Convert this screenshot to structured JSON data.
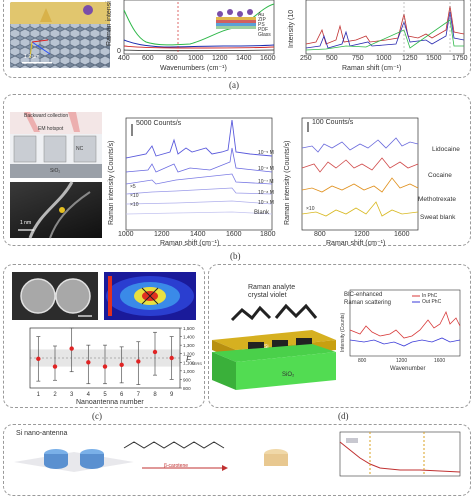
{
  "panels": {
    "a": {
      "label": "(a)",
      "scalebar": "1.2 μm",
      "spectrum_layers": [
        "Au",
        "ZIP",
        "PS",
        "PDF",
        "Glass"
      ],
      "spectrum": {
        "ylabel": "Raman intensi",
        "xlabel": "Wavenumbers (cm⁻¹)",
        "xticks": [
          "400",
          "600",
          "800",
          "1000",
          "1200",
          "1400",
          "1600"
        ],
        "ytick": "0"
      },
      "right": {
        "ylabel": "Intensity (10",
        "xlabel": "Raman shift (cm⁻¹)",
        "xticks": [
          "250",
          "500",
          "750",
          "1000",
          "1250",
          "1500",
          "1750"
        ]
      }
    },
    "b": {
      "label": "(b)",
      "illus": {
        "backward": "Backward collection",
        "hotspot": "EM hotspot",
        "nc": "NC",
        "sio2": "SiO₂",
        "scale": "1 nm"
      },
      "left": {
        "scale": "5000 Counts/s",
        "ylabel": "Raman intensity (Counts/s)",
        "xlabel": "Raman shift (cm⁻¹)",
        "xticks": [
          "1000",
          "1200",
          "1400",
          "1600",
          "1800"
        ],
        "conc": [
          "10⁻⁵ M",
          "10⁻⁶ M",
          "10⁻⁷ M",
          "10⁻⁸ M",
          "10⁻⁹ M",
          "Blank"
        ],
        "mult": [
          "×5",
          "×10",
          "×10"
        ]
      },
      "right": {
        "scale": "100 Counts/s",
        "ylabel": "Raman intensity (Counts/s)",
        "xlabel": "Raman shift (cm⁻¹)",
        "xticks": [
          "800",
          "1200",
          "1600"
        ],
        "labels": [
          "Lidocaine",
          "Cocaine",
          "Methotrexate",
          "Sweat blank"
        ],
        "mult": "×10"
      }
    },
    "c": {
      "label": "(c)",
      "xlabel": "Nanoantenna number",
      "ylabel": "F",
      "ylabel_sub": "SERS",
      "yticks": [
        "800",
        "900",
        "1,000",
        "1,100",
        "1,200",
        "1,300",
        "1,400",
        "1,500"
      ],
      "xticks": [
        "1",
        "2",
        "3",
        "4",
        "5",
        "6",
        "7",
        "8",
        "9"
      ]
    },
    "d": {
      "label": "(d)",
      "title1": "Raman analyte",
      "title2": "crystal violet",
      "sio2": "SiO₂",
      "nsi": "Si",
      "inset_title1": "BIC-enhanced",
      "inset_title2": "Raman scattering",
      "legend": [
        "In PhC",
        "Out PhC"
      ],
      "ylabel": "Intensity (Counts)",
      "xlabel": "Wavenumber",
      "xticks": [
        "800",
        "1200",
        "1600"
      ]
    },
    "e": {
      "title": "Si nano-antenna",
      "reaction": "β-carotene"
    }
  },
  "chart_data": [
    {
      "type": "scatter",
      "xlabel": "Nanoantenna number",
      "ylabel": "F SERS",
      "ylim": [
        800,
        1500
      ],
      "x": [
        1,
        2,
        3,
        4,
        5,
        6,
        7,
        8,
        9
      ],
      "values": [
        1140,
        1050,
        1260,
        1100,
        1050,
        1070,
        1110,
        1220,
        1150
      ],
      "err_low": [
        260,
        160,
        270,
        250,
        200,
        210,
        270,
        270,
        250
      ],
      "err_high": [
        260,
        240,
        240,
        200,
        250,
        210,
        230,
        230,
        250
      ],
      "mean_line": 1150,
      "band": [
        1050,
        1250
      ]
    }
  ]
}
